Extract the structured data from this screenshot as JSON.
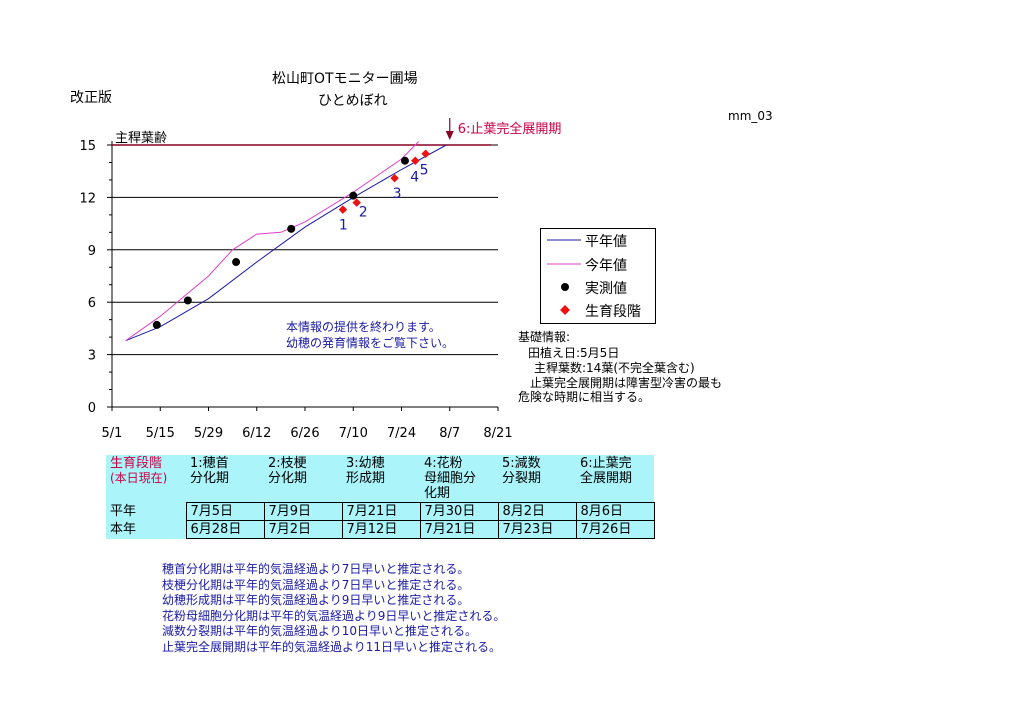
{
  "header": {
    "title_line1": "松山町OTモニター圃場",
    "title_line2": "ひとめぼれ",
    "revision": "改正版",
    "code": "mm_03"
  },
  "chart_data": {
    "type": "line",
    "ylabel": "主稈葉齢",
    "ylim": [
      0,
      15
    ],
    "yticks": [
      0,
      3,
      6,
      9,
      12,
      15
    ],
    "xlim": [
      "5/1",
      "8/21"
    ],
    "xticks": [
      "5/1",
      "5/15",
      "5/29",
      "6/12",
      "6/26",
      "7/10",
      "7/24",
      "8/7",
      "8/21"
    ],
    "grid": "horizontal",
    "legend_position": "right",
    "colors": {
      "heinen": "#1a1aa6",
      "konen": "#e040c8",
      "observed": "#000000",
      "stage": "#ee1111",
      "limit": "#880022"
    },
    "series": [
      {
        "name": "平年値",
        "x": [
          "5/5",
          "5/15",
          "5/29",
          "6/12",
          "6/26",
          "7/10",
          "7/24",
          "8/6"
        ],
        "values": [
          3.8,
          4.6,
          6.2,
          8.3,
          10.3,
          12.0,
          13.6,
          15.0
        ]
      },
      {
        "name": "今年値",
        "x": [
          "5/5",
          "5/15",
          "5/29",
          "6/5",
          "6/12",
          "6/19",
          "6/26",
          "7/10",
          "7/24",
          "7/29"
        ],
        "values": [
          3.8,
          5.2,
          7.5,
          9.0,
          9.9,
          10.0,
          10.6,
          12.3,
          14.2,
          15.2
        ]
      },
      {
        "name": "実測値",
        "x": [
          "5/14",
          "5/23",
          "6/6",
          "6/22",
          "7/10",
          "7/25"
        ],
        "values": [
          4.7,
          6.1,
          8.3,
          10.2,
          12.1,
          14.1
        ]
      },
      {
        "name": "生育段階",
        "x": [
          "7/7",
          "7/11",
          "7/22",
          "7/28",
          "7/31"
        ],
        "values": [
          11.3,
          11.7,
          13.1,
          14.1,
          14.5
        ],
        "labels": [
          "1",
          "2",
          "3",
          "4",
          "5"
        ]
      }
    ],
    "annotations": {
      "limit_line_value": 15,
      "limit_label": "6:止葉完全展開期",
      "limit_date": "8/7"
    }
  },
  "message": {
    "line1": "本情報の提供を終わります。",
    "line2": "幼穂の発育情報をご覧下さい。"
  },
  "info": {
    "heading": "基礎情報:",
    "planting": "田植え日:5月5日",
    "leaves": "主稈葉数:14葉(不完全葉含む)",
    "note1": "止葉完全展開期は障害型冷害の最も",
    "note2": "危険な時期に相当する。"
  },
  "stage_table": {
    "corner1": "生育段階",
    "corner2": "(本日現在)",
    "headers": [
      {
        "l1": "1:穂首",
        "l2": "分化期",
        "l3": ""
      },
      {
        "l1": "2:枝梗",
        "l2": "分化期",
        "l3": ""
      },
      {
        "l1": "3:幼穂",
        "l2": "形成期",
        "l3": ""
      },
      {
        "l1": "4:花粉",
        "l2": "母細胞分",
        "l3": "化期"
      },
      {
        "l1": "5:減数",
        "l2": "分裂期",
        "l3": ""
      },
      {
        "l1": "6:止葉完",
        "l2": "全展開期",
        "l3": ""
      }
    ],
    "rows": [
      {
        "label": "平年",
        "values": [
          "7月5日",
          "7月9日",
          "7月21日",
          "7月30日",
          "8月2日",
          "8月6日"
        ]
      },
      {
        "label": "本年",
        "values": [
          "6月28日",
          "7月2日",
          "7月12日",
          "7月21日",
          "7月23日",
          "7月26日"
        ]
      }
    ]
  },
  "notes": [
    "穂首分化期は平年的気温経過より7日早いと推定される。",
    "枝梗分化期は平年的気温経過より7日早いと推定される。",
    "幼穂形成期は平年的気温経過より9日早いと推定される。",
    "花粉母細胞分化期は平年的気温経過より9日早いと推定される。",
    "減数分裂期は平年的気温経過より10日早いと推定される。",
    "止葉完全展開期は平年的気温経過より11日早いと推定される。"
  ]
}
